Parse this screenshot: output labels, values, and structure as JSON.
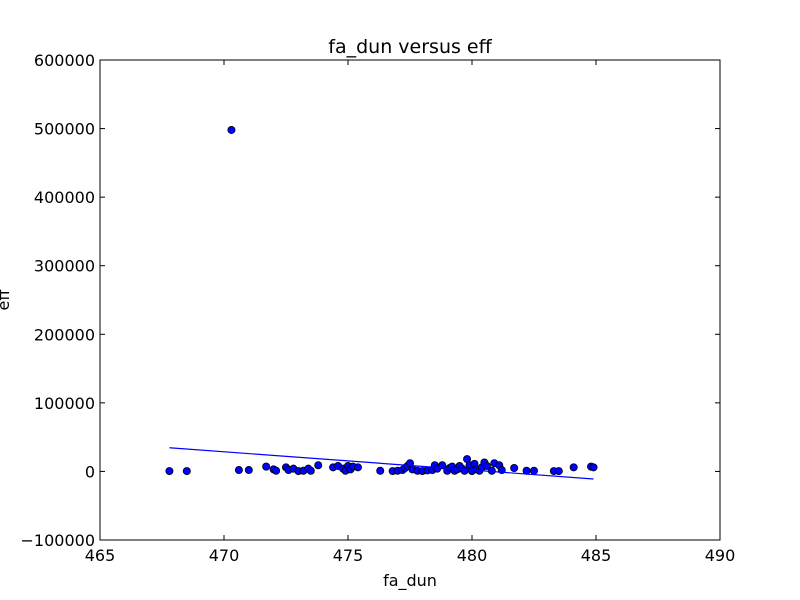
{
  "chart_data": {
    "type": "scatter",
    "title": "fa_dun versus eff",
    "xlabel": "fa_dun",
    "ylabel": "eff",
    "xlim": [
      465,
      490
    ],
    "ylim": [
      -100000,
      600000
    ],
    "xticks": [
      465,
      470,
      475,
      480,
      485,
      490
    ],
    "xtick_labels": [
      "465",
      "470",
      "475",
      "480",
      "485",
      "490"
    ],
    "yticks": [
      -100000,
      0,
      100000,
      200000,
      300000,
      400000,
      500000,
      600000
    ],
    "ytick_labels": [
      "−100000",
      "0",
      "100000",
      "200000",
      "300000",
      "400000",
      "500000",
      "600000"
    ],
    "grid": false,
    "marker_color": "#0000ff",
    "line_color": "#0000ff",
    "series": [
      {
        "kind": "points",
        "points": [
          [
            467.8,
            500
          ],
          [
            468.5,
            500
          ],
          [
            470.3,
            498000
          ],
          [
            470.6,
            2000
          ],
          [
            471.0,
            2000
          ],
          [
            471.7,
            7000
          ],
          [
            472.0,
            3000
          ],
          [
            472.1,
            1000
          ],
          [
            472.5,
            6000
          ],
          [
            472.6,
            2000
          ],
          [
            472.8,
            4000
          ],
          [
            473.0,
            500
          ],
          [
            473.2,
            1000
          ],
          [
            473.4,
            4000
          ],
          [
            473.5,
            1000
          ],
          [
            473.8,
            9000
          ],
          [
            474.4,
            6000
          ],
          [
            474.6,
            8000
          ],
          [
            474.8,
            4000
          ],
          [
            474.9,
            1000
          ],
          [
            475.0,
            8000
          ],
          [
            475.1,
            3000
          ],
          [
            475.2,
            7000
          ],
          [
            475.4,
            6000
          ],
          [
            476.3,
            1000
          ],
          [
            476.8,
            500
          ],
          [
            477.0,
            1000
          ],
          [
            477.2,
            2000
          ],
          [
            477.3,
            5000
          ],
          [
            477.4,
            8000
          ],
          [
            477.5,
            12000
          ],
          [
            477.6,
            3000
          ],
          [
            477.8,
            1000
          ],
          [
            478.0,
            500
          ],
          [
            478.2,
            1500
          ],
          [
            478.4,
            2000
          ],
          [
            478.5,
            9000
          ],
          [
            478.6,
            4000
          ],
          [
            478.8,
            9000
          ],
          [
            479.0,
            1000
          ],
          [
            479.1,
            5000
          ],
          [
            479.2,
            7000
          ],
          [
            479.3,
            1000
          ],
          [
            479.4,
            3000
          ],
          [
            479.5,
            8000
          ],
          [
            479.6,
            4000
          ],
          [
            479.7,
            1000
          ],
          [
            479.8,
            18000
          ],
          [
            479.9,
            9000
          ],
          [
            480.0,
            500
          ],
          [
            480.1,
            11000
          ],
          [
            480.2,
            3000
          ],
          [
            480.3,
            1000
          ],
          [
            480.4,
            6000
          ],
          [
            480.5,
            13000
          ],
          [
            480.6,
            8000
          ],
          [
            480.8,
            1000
          ],
          [
            480.9,
            12000
          ],
          [
            481.1,
            9000
          ],
          [
            481.2,
            2000
          ],
          [
            481.7,
            5000
          ],
          [
            482.2,
            1000
          ],
          [
            482.5,
            1000
          ],
          [
            483.3,
            500
          ],
          [
            483.5,
            500
          ],
          [
            484.1,
            6000
          ],
          [
            484.8,
            7000
          ],
          [
            484.9,
            6000
          ]
        ]
      },
      {
        "kind": "fit-line",
        "points": [
          [
            467.8,
            34500
          ],
          [
            484.9,
            -11000
          ]
        ]
      }
    ]
  }
}
